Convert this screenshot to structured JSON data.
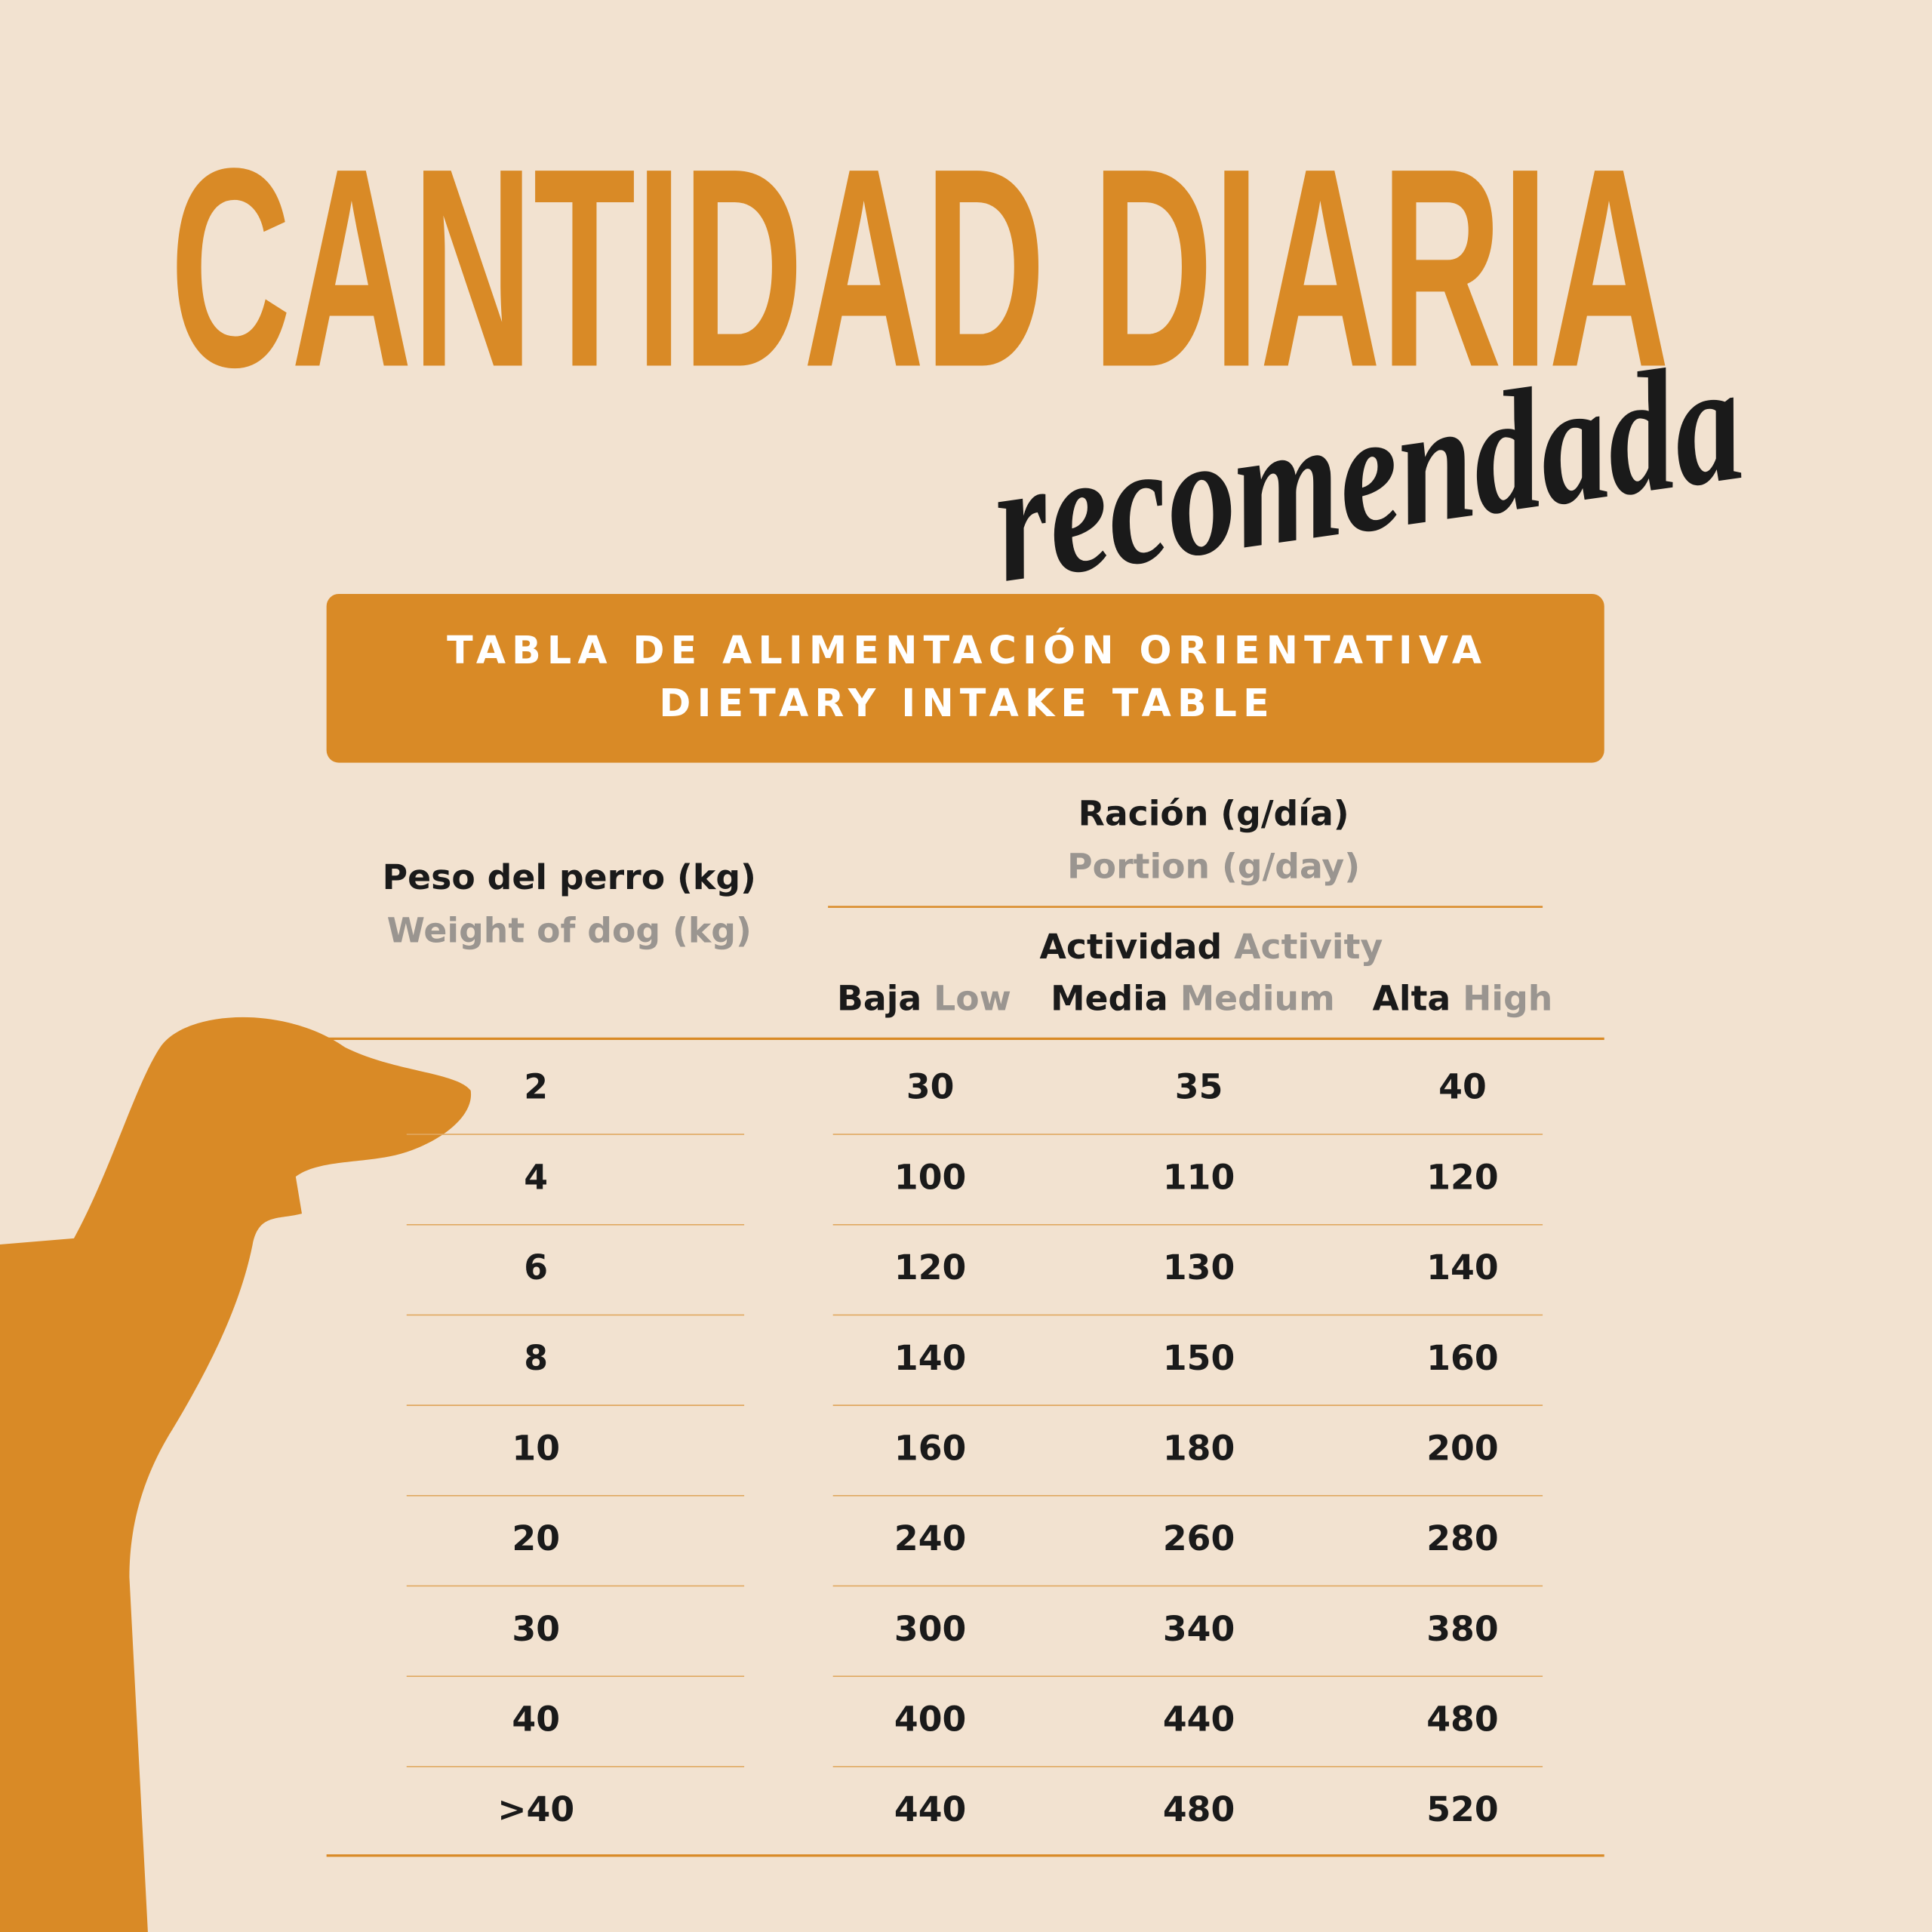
{
  "title": "CANTIDAD DIARIA",
  "subtitle": "recomendada",
  "banner": {
    "line1": "TABLA DE ALIMENTACIÓN ORIENTATIVA",
    "line2": "DIETARY INTAKE TABLE"
  },
  "table": {
    "weight_header": {
      "es": "Peso del perro (kg)",
      "en": "Weight of dog (kg)"
    },
    "portion_header": {
      "es": "Ración (g/día)",
      "en": "Portion (g/day)"
    },
    "activity_header": {
      "es": "Actividad",
      "en": "Activity"
    },
    "columns": [
      {
        "es": "Baja",
        "en": "Low"
      },
      {
        "es": "Media",
        "en": "Medium"
      },
      {
        "es": "Alta",
        "en": "High"
      }
    ],
    "rows": [
      [
        2,
        30,
        35,
        40
      ],
      [
        4,
        100,
        110,
        120
      ],
      [
        6,
        120,
        130,
        140
      ],
      [
        8,
        140,
        150,
        160
      ],
      [
        10,
        160,
        180,
        200
      ],
      [
        20,
        240,
        260,
        280
      ],
      [
        30,
        300,
        340,
        380
      ],
      [
        40,
        400,
        440,
        480
      ],
      [
        ">40",
        440,
        480,
        520
      ]
    ]
  }
}
